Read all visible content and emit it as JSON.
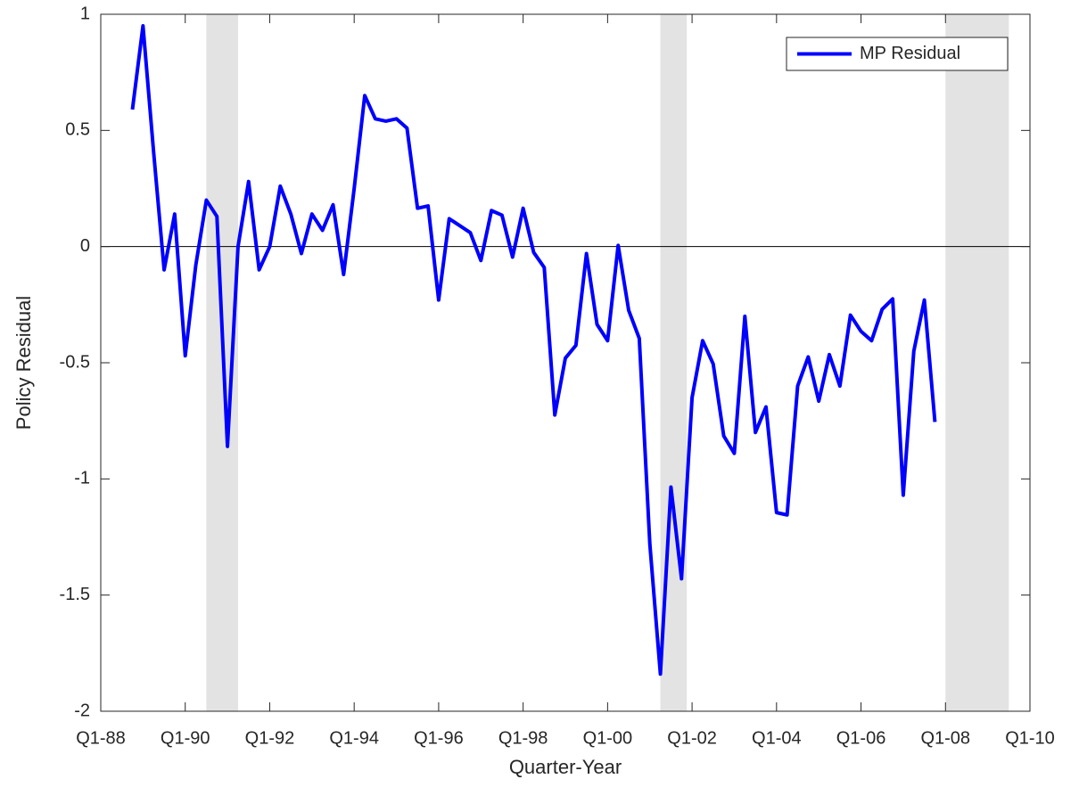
{
  "chart_data": {
    "type": "line",
    "x_label": "Quarter-Year",
    "y_label": "Policy Residual",
    "x": [
      1988.75,
      1989,
      1989.25,
      1989.5,
      1989.75,
      1990,
      1990.25,
      1990.5,
      1990.75,
      1991,
      1991.25,
      1991.5,
      1991.75,
      1992,
      1992.25,
      1992.5,
      1992.75,
      1993,
      1993.25,
      1993.5,
      1993.75,
      1994,
      1994.25,
      1994.5,
      1994.75,
      1995,
      1995.25,
      1995.5,
      1995.75,
      1996,
      1996.25,
      1996.5,
      1996.75,
      1997,
      1997.25,
      1997.5,
      1997.75,
      1998,
      1998.25,
      1998.5,
      1998.75,
      1999,
      1999.25,
      1999.5,
      1999.75,
      2000,
      2000.25,
      2000.5,
      2000.75,
      2001,
      2001.25,
      2001.5,
      2001.75,
      2002,
      2002.25,
      2002.5,
      2002.75,
      2003,
      2003.25,
      2003.5,
      2003.75,
      2004,
      2004.25,
      2004.5,
      2004.75,
      2005,
      2005.25,
      2005.5,
      2005.75,
      2006,
      2006.25,
      2006.5,
      2006.75,
      2007,
      2007.25,
      2007.5,
      2007.75
    ],
    "series": [
      {
        "name": "MP Residual",
        "color": "#0000ff",
        "values": [
          0.59,
          0.95,
          0.41,
          -0.1,
          0.14,
          -0.47,
          -0.08,
          0.2,
          0.13,
          -0.86,
          0.0,
          0.28,
          -0.1,
          0.0,
          0.26,
          0.14,
          -0.03,
          0.14,
          0.07,
          0.18,
          -0.12,
          0.25,
          0.65,
          0.55,
          0.54,
          0.55,
          0.51,
          0.165,
          0.175,
          -0.23,
          0.12,
          0.09,
          0.06,
          -0.06,
          0.155,
          0.135,
          -0.045,
          0.165,
          -0.025,
          -0.09,
          -0.725,
          -0.48,
          -0.425,
          -0.03,
          -0.335,
          -0.405,
          0.005,
          -0.275,
          -0.395,
          -1.28,
          -1.84,
          -1.035,
          -1.43,
          -0.65,
          -0.405,
          -0.505,
          -0.815,
          -0.89,
          -0.3,
          -0.8,
          -0.69,
          -1.145,
          -1.155,
          -0.6,
          -0.475,
          -0.665,
          -0.465,
          -0.6,
          -0.295,
          -0.365,
          -0.405,
          -0.27,
          -0.225,
          -1.07,
          -0.45,
          -0.23,
          -0.755
        ]
      }
    ],
    "shaded_regions": [
      [
        1990.5,
        1991.25
      ],
      [
        2001.25,
        2001.875
      ],
      [
        2008,
        2009.5
      ]
    ],
    "shade_color": "#e3e3e3",
    "xlim": [
      1988,
      2010
    ],
    "xticks": [
      {
        "value": 1988,
        "label": "Q1-88"
      },
      {
        "value": 1990,
        "label": "Q1-90"
      },
      {
        "value": 1992,
        "label": "Q1-92"
      },
      {
        "value": 1994,
        "label": "Q1-94"
      },
      {
        "value": 1996,
        "label": "Q1-96"
      },
      {
        "value": 1998,
        "label": "Q1-98"
      },
      {
        "value": 2000,
        "label": "Q1-00"
      },
      {
        "value": 2002,
        "label": "Q1-02"
      },
      {
        "value": 2004,
        "label": "Q1-04"
      },
      {
        "value": 2006,
        "label": "Q1-06"
      },
      {
        "value": 2008,
        "label": "Q1-08"
      },
      {
        "value": 2010,
        "label": "Q1-10"
      }
    ],
    "ylim": [
      -2,
      1
    ],
    "yticks": [
      -2,
      -1.5,
      -1,
      -0.5,
      0,
      0.5,
      1
    ],
    "legend": "top-right"
  }
}
